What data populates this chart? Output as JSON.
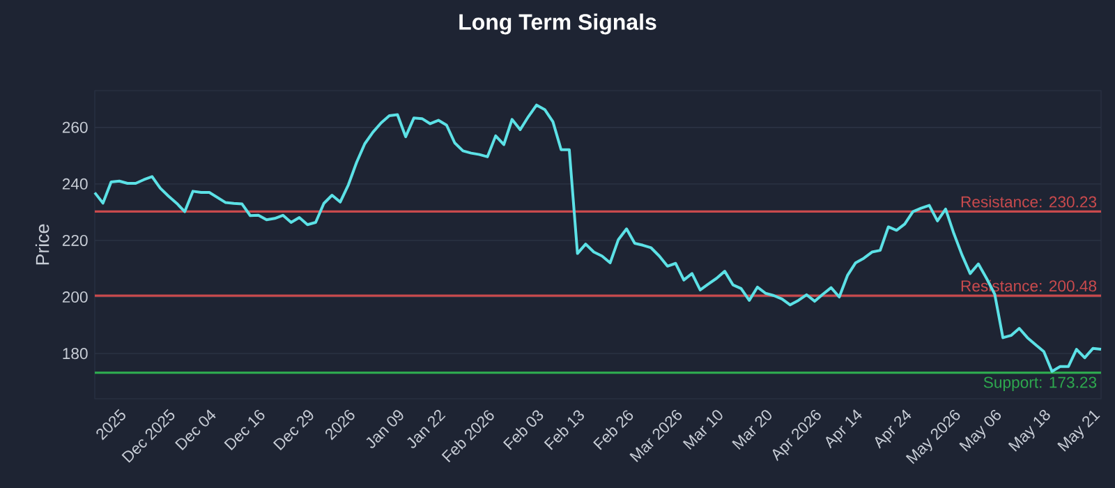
{
  "chart_data": {
    "type": "line",
    "title": "Long Term Signals",
    "ylabel": "Price",
    "categories": [
      null,
      null,
      null,
      "2025",
      null,
      null,
      null,
      null,
      null,
      "Dec 2025",
      null,
      null,
      null,
      null,
      "Dec 04",
      null,
      null,
      null,
      null,
      null,
      "Dec 16",
      null,
      null,
      null,
      null,
      null,
      "Dec 29",
      null,
      null,
      null,
      null,
      "2026",
      null,
      null,
      null,
      null,
      null,
      "Jan 09",
      null,
      null,
      null,
      null,
      "Jan 22",
      null,
      null,
      null,
      null,
      null,
      "Feb 2026",
      null,
      null,
      null,
      null,
      null,
      "Feb 03",
      null,
      null,
      null,
      null,
      "Feb 13",
      null,
      null,
      null,
      null,
      null,
      "Feb 26",
      null,
      null,
      null,
      null,
      null,
      "Mar 2026",
      null,
      null,
      null,
      null,
      "Mar 10",
      null,
      null,
      null,
      null,
      null,
      "Mar 20",
      null,
      null,
      null,
      null,
      null,
      "Apr 2026",
      null,
      null,
      null,
      null,
      "Apr 14",
      null,
      null,
      null,
      null,
      null,
      "Apr 24",
      null,
      null,
      null,
      null,
      null,
      "May 2026",
      null,
      null,
      null,
      null,
      "May 06",
      null,
      null,
      null,
      null,
      null,
      "May 18",
      null,
      null,
      null,
      null,
      null,
      "May 21",
      null
    ],
    "series": [
      {
        "color": "#5ce1e6",
        "values": [
          236.9,
          233.2,
          240.7,
          241.0,
          240.2,
          240.2,
          241.5,
          242.6,
          238.5,
          235.7,
          233.2,
          230.2,
          237.4,
          237.0,
          237.0,
          235.2,
          233.4,
          233.1,
          232.9,
          228.8,
          228.9,
          227.3,
          227.8,
          228.9,
          226.4,
          228.1,
          225.6,
          226.4,
          233.1,
          236.0,
          233.6,
          239.7,
          247.6,
          254.2,
          258.3,
          261.6,
          264.1,
          264.5,
          256.7,
          263.3,
          263.1,
          261.3,
          262.5,
          260.8,
          254.5,
          251.7,
          250.9,
          250.4,
          249.6,
          257.0,
          253.9,
          262.8,
          259.2,
          263.8,
          267.9,
          266.3,
          262.0,
          252.1,
          252.1,
          215.4,
          218.7,
          215.9,
          214.5,
          212.1,
          220.3,
          224.1,
          219.0,
          218.3,
          217.4,
          214.5,
          210.9,
          211.9,
          206.0,
          208.3,
          202.5,
          204.6,
          206.6,
          209.1,
          204.3,
          203.0,
          198.8,
          203.5,
          201.3,
          200.5,
          199.3,
          197.2,
          198.8,
          200.8,
          198.5,
          201.0,
          203.3,
          200.0,
          207.6,
          212.1,
          213.7,
          215.9,
          216.5,
          224.8,
          223.6,
          225.8,
          230.2,
          231.4,
          232.4,
          226.9,
          231.1,
          222.5,
          214.9,
          208.3,
          211.7,
          206.6,
          201.0,
          185.6,
          186.4,
          188.9,
          185.6,
          183.1,
          180.7,
          173.7,
          175.4,
          175.4,
          181.5,
          178.5,
          181.8,
          181.5
        ]
      }
    ],
    "ylim": [
      164,
      273
    ],
    "yticks": [
      180,
      200,
      220,
      240,
      260
    ],
    "grid": "y",
    "marker": "none",
    "line_style": "solid",
    "ref_lines": [
      {
        "axis": "y",
        "value": 230.23,
        "label": "Resistance: 230.23",
        "color": "#c94a4d"
      },
      {
        "axis": "y",
        "value": 200.48,
        "label": "Resistance: 200.48",
        "color": "#c94a4d"
      },
      {
        "axis": "y",
        "value": 173.23,
        "label": "Support: 173.23",
        "color": "#2ea84f"
      }
    ]
  }
}
